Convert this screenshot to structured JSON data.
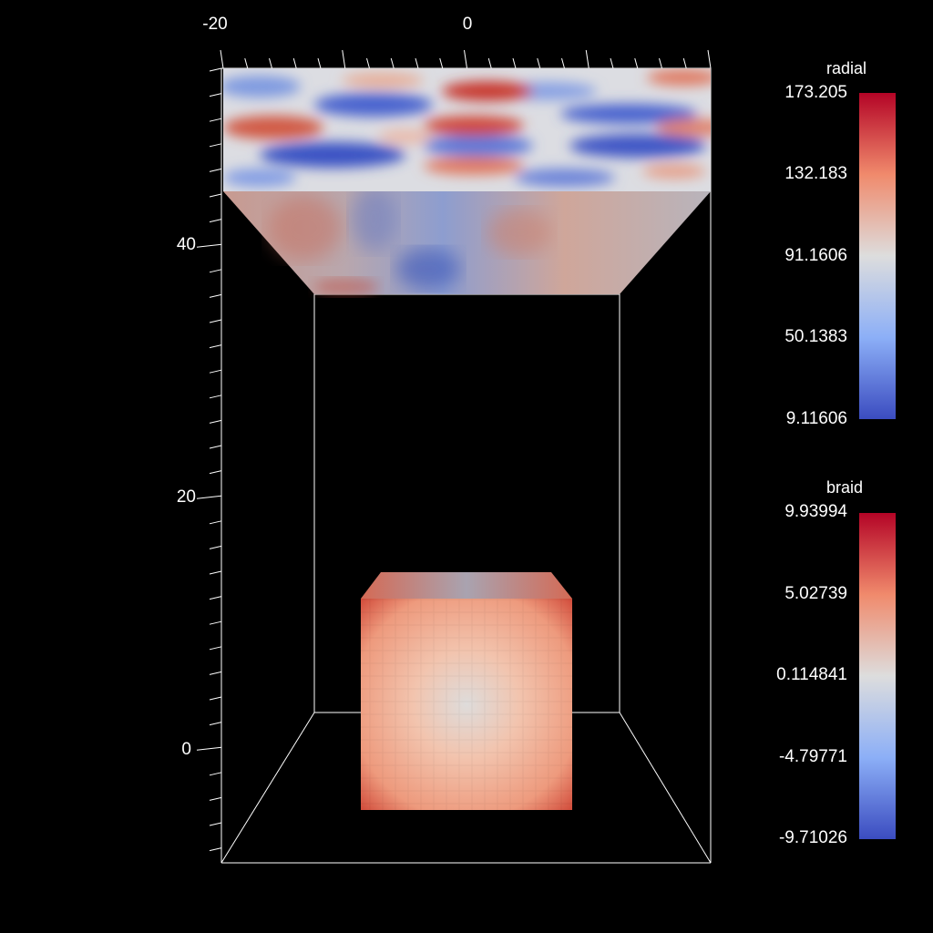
{
  "axes": {
    "x_ticks": [
      "-20",
      "0"
    ],
    "y_ticks": [
      "40",
      "20",
      "0"
    ]
  },
  "legends": [
    {
      "title": "radial",
      "ticks": [
        "173.205",
        "132.183",
        "91.1606",
        "50.1383",
        "9.11606"
      ],
      "colors": {
        "high": "#b40426",
        "mid": "#dddddd",
        "low": "#3b4cc0"
      }
    },
    {
      "title": "braid",
      "ticks": [
        "9.93994",
        "5.02739",
        "0.114841",
        "-4.79771",
        "-9.71026"
      ],
      "colors": {
        "high": "#b40426",
        "mid": "#dddddd",
        "low": "#3b4cc0"
      }
    }
  ]
}
